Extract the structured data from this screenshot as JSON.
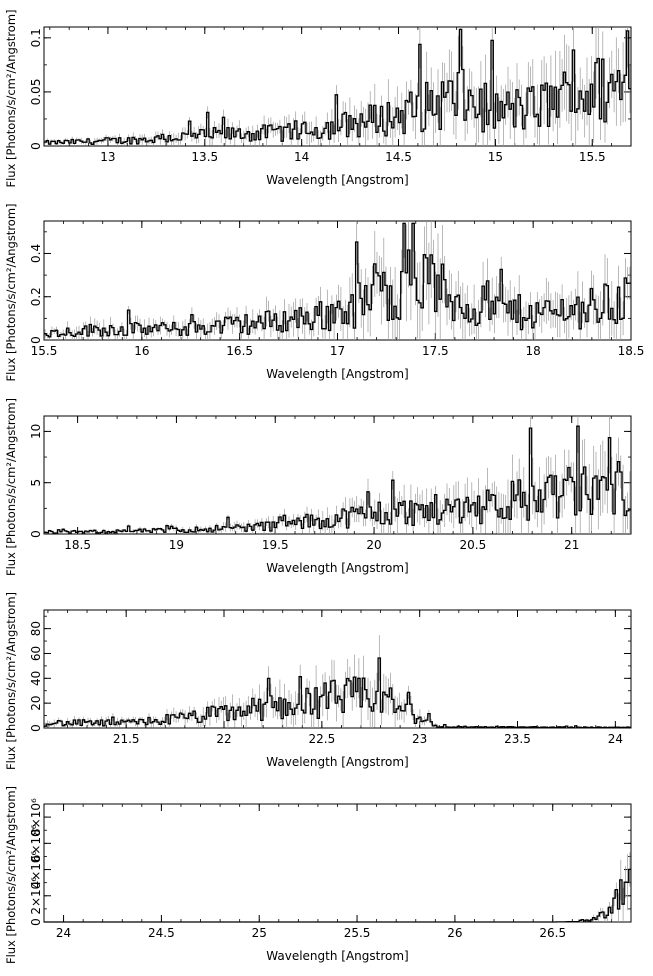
{
  "chart_data": [
    {
      "type": "histogram-errorbars",
      "xlabel": "Wavelength [Angstrom]",
      "ylabel": "Flux [Photons/s/cm²/Angstrom]",
      "xlim": [
        12.67,
        15.7
      ],
      "ylim": [
        0,
        0.11
      ],
      "xticks": [
        13,
        13.5,
        14,
        14.5,
        15,
        15.5
      ],
      "xticklabels": [
        "13",
        "13.5",
        "14",
        "14.5",
        "15",
        "15.5"
      ],
      "yticks": [
        0,
        0.05,
        0.1
      ],
      "yticklabels": [
        "0",
        "0.05",
        "0.1"
      ],
      "series": [
        {
          "name": "flux",
          "x": [
            12.7,
            13.2,
            13.5,
            14.0,
            14.3,
            14.5,
            14.8,
            15.0,
            15.2,
            15.45,
            15.7
          ],
          "values": [
            0.003,
            0.006,
            0.01,
            0.013,
            0.022,
            0.028,
            0.045,
            0.032,
            0.035,
            0.05,
            0.055
          ]
        }
      ]
    },
    {
      "type": "histogram-errorbars",
      "xlabel": "Wavelength [Angstrom]",
      "ylabel": "Flux [Photons/s/cm²/Angstrom]",
      "xlim": [
        15.5,
        18.5
      ],
      "ylim": [
        0,
        0.55
      ],
      "xticks": [
        15.5,
        16,
        16.5,
        17,
        17.5,
        18,
        18.5
      ],
      "xticklabels": [
        "15.5",
        "16",
        "16.5",
        "17",
        "17.5",
        "18",
        "18.5"
      ],
      "yticks": [
        0,
        0.2,
        0.4
      ],
      "yticklabels": [
        "0",
        "0.2",
        "0.4"
      ],
      "series": [
        {
          "name": "flux",
          "x": [
            15.5,
            15.8,
            16.2,
            16.6,
            17.0,
            17.2,
            17.4,
            17.6,
            17.8,
            18.0,
            18.3,
            18.5
          ],
          "values": [
            0.03,
            0.05,
            0.05,
            0.08,
            0.12,
            0.2,
            0.3,
            0.18,
            0.14,
            0.12,
            0.15,
            0.2
          ]
        }
      ]
    },
    {
      "type": "histogram-errorbars",
      "xlabel": "Wavelength [Angstrom]",
      "ylabel": "Flux [Photons/s/cm²/Angstrom]",
      "xlim": [
        18.33,
        21.3
      ],
      "ylim": [
        0,
        11.5
      ],
      "xticks": [
        18.5,
        19,
        19.5,
        20,
        20.5,
        21
      ],
      "xticklabels": [
        "18.5",
        "19",
        "19.5",
        "20",
        "20.5",
        "21"
      ],
      "yticks": [
        0,
        5,
        10
      ],
      "yticklabels": [
        "0",
        "5",
        "10"
      ],
      "series": [
        {
          "name": "flux",
          "x": [
            18.33,
            19.0,
            19.5,
            19.8,
            20.0,
            20.3,
            20.5,
            20.8,
            21.0,
            21.3
          ],
          "values": [
            0.15,
            0.35,
            0.8,
            1.5,
            2.0,
            2.3,
            2.7,
            3.5,
            4.0,
            4.5
          ]
        }
      ]
    },
    {
      "type": "histogram-errorbars",
      "xlabel": "Wavelength [Angstrom]",
      "ylabel": "Flux [Photons/s/cm²/Angstrom]",
      "xlim": [
        21.08,
        24.08
      ],
      "ylim": [
        0,
        95
      ],
      "xticks": [
        21.5,
        22,
        22.5,
        23,
        23.5,
        24
      ],
      "xticklabels": [
        "21.5",
        "22",
        "22.5",
        "23",
        "23.5",
        "24"
      ],
      "yticks": [
        0,
        20,
        40,
        60,
        80
      ],
      "yticklabels": [
        "0",
        "20",
        "40",
        "60",
        "80"
      ],
      "series": [
        {
          "name": "flux",
          "x": [
            21.08,
            21.5,
            21.8,
            22.0,
            22.2,
            22.4,
            22.6,
            22.8,
            23.0,
            23.1,
            23.5,
            24.08
          ],
          "values": [
            4,
            4,
            8,
            12,
            16,
            20,
            25,
            25,
            8,
            1,
            0.7,
            0.5
          ]
        }
      ]
    },
    {
      "type": "histogram-errorbars",
      "xlabel": "Wavelength [Angstrom]",
      "ylabel": "Flux [Photons/s/cm²/Angstrom]",
      "xlim": [
        23.9,
        26.9
      ],
      "ylim": [
        0,
        9000000
      ],
      "xticks": [
        24,
        24.5,
        25,
        25.5,
        26,
        26.5
      ],
      "xticklabels": [
        "24",
        "24.5",
        "25",
        "25.5",
        "26",
        "26.5"
      ],
      "yticks": [
        0,
        2000000,
        4000000,
        6000000,
        8000000
      ],
      "yticklabels": [
        "0",
        "2×10⁶",
        "4×10⁶",
        "6×10⁶",
        "8×10⁶"
      ],
      "series": [
        {
          "name": "flux",
          "x": [
            23.9,
            26.5,
            26.6,
            26.7,
            26.8,
            26.9
          ],
          "values": [
            0,
            0,
            20000,
            200000,
            1000000,
            3000000
          ]
        }
      ]
    }
  ]
}
